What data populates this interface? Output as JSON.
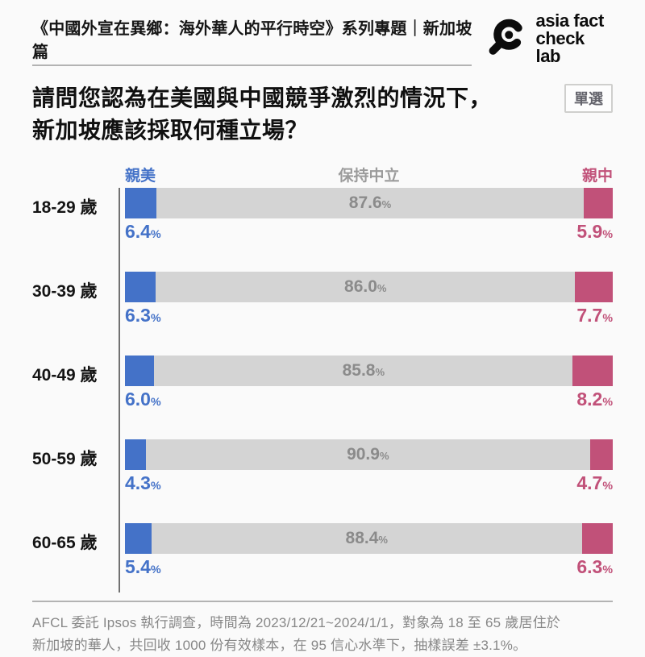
{
  "header": {
    "series_title": "《中國外宣在異鄉：海外華人的平行時空》系列專題｜新加坡篇",
    "logo": {
      "line1": "asia fact",
      "line2": "check lab",
      "icon": "magnifier-icon"
    }
  },
  "question": {
    "line1": "請問您認為在美國與中國競爭激烈的情況下，",
    "line2": "新加坡應該採取何種立場？",
    "badge": "單選"
  },
  "chart_data": {
    "type": "bar",
    "stacked": true,
    "orientation": "horizontal",
    "categories": [
      "18-29 歲",
      "30-39 歲",
      "40-49 歲",
      "50-59 歲",
      "60-65 歲"
    ],
    "series": [
      {
        "name": "親美",
        "color": "#4472c8",
        "values": [
          6.4,
          6.3,
          6.0,
          4.3,
          5.4
        ]
      },
      {
        "name": "保持中立",
        "color": "#d4d4d4",
        "values": [
          87.6,
          86.0,
          85.8,
          90.9,
          88.4
        ]
      },
      {
        "name": "親中",
        "color": "#c15179",
        "values": [
          5.9,
          7.7,
          8.2,
          4.7,
          6.3
        ]
      }
    ],
    "value_suffix": "%",
    "xlim": [
      0,
      100
    ],
    "legend_position": "top",
    "grid": false
  },
  "footer": {
    "lines": [
      "AFCL 委託 Ipsos 執行調查，時間為 2023/12/21~2024/1/1，對象為 18 至 65 歲居住於",
      "新加坡的華人，共回收 1000 份有效樣本，在 95 信心水準下，抽樣誤差 ±3.1%。"
    ]
  },
  "colors": {
    "background": "#fafafa",
    "pro_us_blue": "#4472c8",
    "neutral_gray": "#d4d4d4",
    "pro_cn_pink": "#c15179",
    "divider_gray": "#b3b3b3"
  }
}
